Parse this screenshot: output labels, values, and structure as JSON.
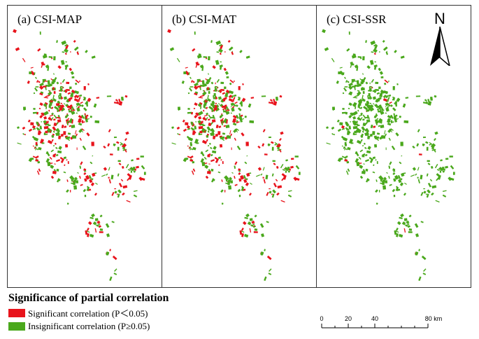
{
  "panels": [
    {
      "label": "(a) CSI-MAP",
      "significant_share": 0.45
    },
    {
      "label": "(b) CSI-MAT",
      "significant_share": 0.4
    },
    {
      "label": "(c) CSI-SSR",
      "significant_share": 0.02
    }
  ],
  "north_arrow": {
    "letter": "N",
    "icon": "north-arrow-icon"
  },
  "legend": {
    "title": "Significance of partial correlation",
    "items": [
      {
        "label": "Significant correlation (P＜0.05)",
        "color": "#e8141c"
      },
      {
        "label": "Insignificant correlation (P≥0.05)",
        "color": "#4aa81c"
      }
    ]
  },
  "scalebar": {
    "ticks": [
      "0",
      "20",
      "40",
      "80 km"
    ]
  }
}
